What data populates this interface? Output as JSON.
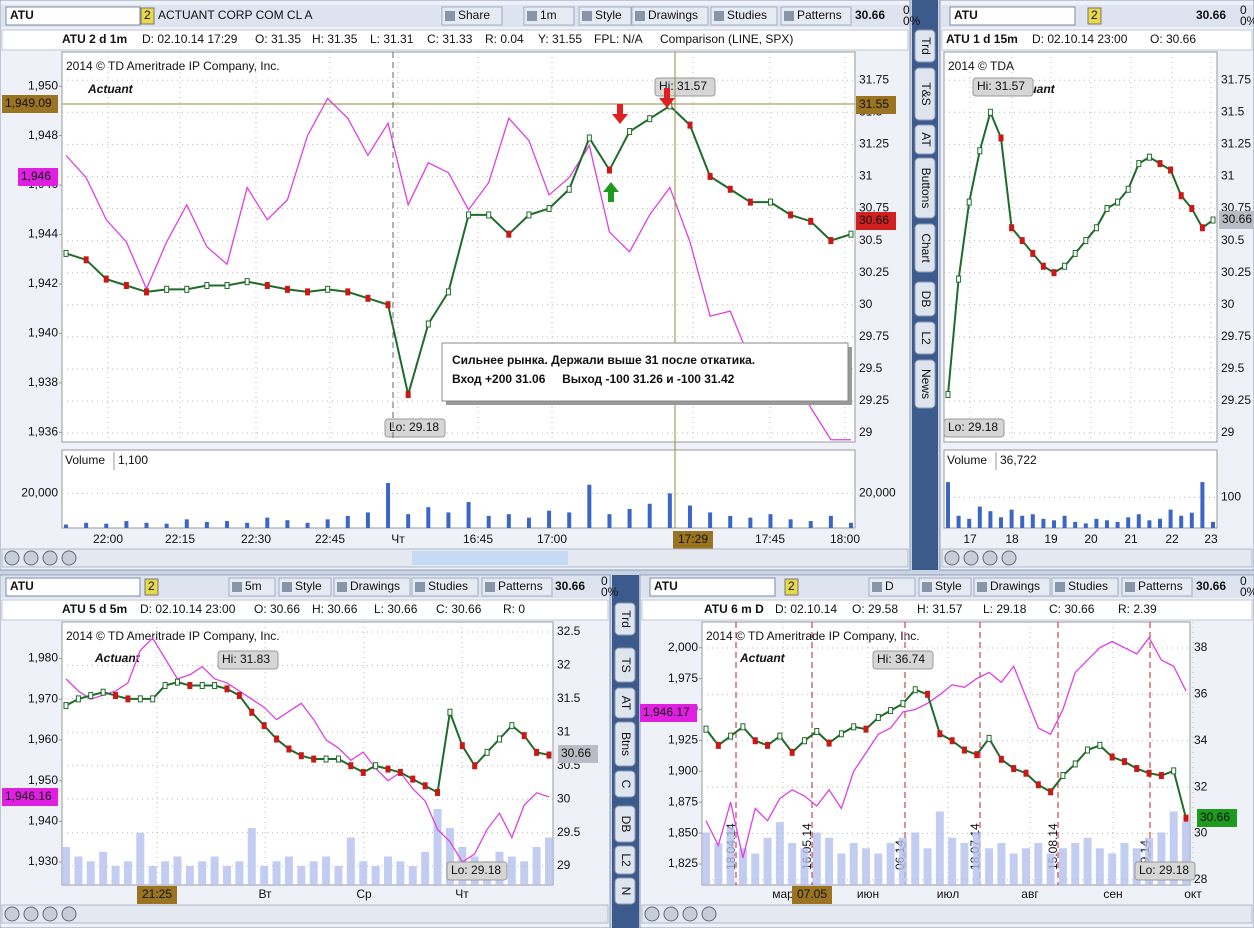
{
  "panels": [
    {
      "symbol": "ATU",
      "link": "2",
      "name": "ACTUANT CORP COM CL A",
      "tools": [
        "Share",
        "1m",
        "Style",
        "Drawings",
        "Studies",
        "Patterns"
      ],
      "last": "30.66",
      "change": "0",
      "change_pct": "0%",
      "info": [
        "ATU 2 d 1m",
        "D: 02.10.14 17:29",
        "O: 31.35",
        "H: 31.35",
        "L: 31.31",
        "C: 31.33",
        "R: 0.04",
        "Y: 31.55",
        "FPL: N/A"
      ],
      "comparison_label": "Comparison (LINE, SPX)",
      "copyright": "2014 © TD Ameritrade IP Company, Inc.",
      "logo": "Actuant",
      "hi": "Hi: 31.57",
      "lo": "Lo: 29.18",
      "price": {
        "ylim": [
          28.93,
          31.97
        ],
        "yticks": [
          31.75,
          31.5,
          31.25,
          31,
          30.75,
          30.5,
          30.25,
          30,
          29.75,
          29.5,
          29.25,
          29
        ],
        "values": [
          30.4,
          30.35,
          30.2,
          30.15,
          30.1,
          30.12,
          30.12,
          30.15,
          30.15,
          30.18,
          30.15,
          30.12,
          30.1,
          30.12,
          30.1,
          30.05,
          30.0,
          29.3,
          29.85,
          30.1,
          30.7,
          30.7,
          30.55,
          30.7,
          30.75,
          30.9,
          31.3,
          31.05,
          31.35,
          31.45,
          31.55,
          31.4,
          31.0,
          30.9,
          30.8,
          30.8,
          30.7,
          30.65,
          30.5,
          30.55
        ]
      },
      "comparison": {
        "ylim": [
          1935.61,
          1951.38
        ],
        "yticks": [
          {
            "value": 1950,
            "label": "1,950"
          },
          {
            "value": 1948,
            "label": "1,948"
          },
          {
            "value": 1946,
            "label": "1,946"
          },
          {
            "value": 1944,
            "label": "1,944"
          },
          {
            "value": 1942,
            "label": "1,942"
          },
          {
            "value": 1940,
            "label": "1,940"
          },
          {
            "value": 1938,
            "label": "1,938"
          },
          {
            "value": 1936,
            "label": "1,936"
          }
        ],
        "values": [
          1947.2,
          1946.3,
          1944.6,
          1943.7,
          1941.8,
          1943.7,
          1945.2,
          1943.5,
          1942.8,
          1945.9,
          1944.6,
          1945.4,
          1948.0,
          1949.5,
          1948.7,
          1947.2,
          1948.5,
          1945.2,
          1946.9,
          1946.5,
          1945.0,
          1946.1,
          1948.7,
          1947.8,
          1945.6,
          1946.3,
          1947.6,
          1944.1,
          1943.3,
          1944.8,
          1945.9,
          1943.7,
          1940.7,
          1940.9,
          1938.9,
          1938.7,
          1938.5,
          1937.0,
          1935.7,
          1935.7
        ]
      },
      "volume": {
        "label": "Volume",
        "current": "1,100",
        "ylim": [
          0,
          32350
        ],
        "yticks": [
          {
            "value": 20000,
            "label": "20,000"
          }
        ],
        "values": [
          2000,
          3000,
          2500,
          4000,
          3000,
          2500,
          5000,
          3500,
          4000,
          3000,
          6000,
          4500,
          3000,
          5000,
          7000,
          9000,
          26000,
          8000,
          12000,
          9000,
          15000,
          7000,
          8000,
          6000,
          10000,
          9000,
          25000,
          8000,
          11000,
          14000,
          20000,
          13000,
          9000,
          7000,
          6000,
          8000,
          5000,
          4000,
          7000,
          3000
        ]
      },
      "xticks": [
        "22:00",
        "22:15",
        "22:30",
        "22:45",
        "Чт",
        "16:45",
        "17:00",
        "17:29",
        "17:45",
        "18:00"
      ],
      "markers": [
        "1,949.09",
        "1,946",
        "31.55",
        "30.66"
      ]
    },
    {
      "symbol": "ATU",
      "link": "2",
      "last": "30.66",
      "change": "0",
      "change_pct": "0%",
      "info": [
        "ATU 1 d 15m",
        "D: 02.10.14 23:00",
        "O: 30.66"
      ],
      "copyright": "2014 © TDA",
      "logo": "Actuant",
      "hi": "Hi: 31.57",
      "lo": "Lo: 29.18",
      "price": {
        "ylim": [
          28.93,
          31.97
        ],
        "yticks": [
          31.75,
          31.5,
          31.25,
          31,
          30.75,
          30.5,
          30.25,
          30,
          29.75,
          29.5,
          29.25,
          29
        ],
        "values": [
          29.3,
          30.2,
          30.8,
          31.2,
          31.5,
          31.3,
          30.6,
          30.5,
          30.4,
          30.3,
          30.25,
          30.3,
          30.4,
          30.5,
          30.6,
          30.75,
          30.8,
          30.9,
          31.1,
          31.15,
          31.1,
          31.05,
          30.85,
          30.75,
          30.6,
          30.66
        ]
      },
      "volume": {
        "label": "Volume",
        "current": "36,722",
        "ylim": [
          0,
          183
        ],
        "yticks": [
          100
        ],
        "values": [
          150,
          40,
          30,
          70,
          55,
          35,
          60,
          40,
          45,
          30,
          25,
          40,
          20,
          15,
          30,
          25,
          20,
          35,
          45,
          25,
          30,
          60,
          40,
          50,
          150,
          20
        ]
      },
      "xticks": [
        "17",
        "18",
        "19",
        "20",
        "21",
        "22",
        "23"
      ],
      "markers": [
        "30.66"
      ]
    },
    {
      "symbol": "ATU",
      "link": "2",
      "last": "30.66",
      "change": "0",
      "change_pct": "0%",
      "tools": [
        "5m",
        "Style",
        "Drawings",
        "Studies",
        "Patterns"
      ],
      "info": [
        "ATU 5 d 5m",
        "D: 02.10.14 23:00",
        "O: 30.66",
        "H: 30.66",
        "L: 30.66",
        "C: 30.66",
        "R: 0"
      ],
      "copyright": "2014 © TD Ameritrade IP Company, Inc.",
      "logo": "Actuant",
      "hi": "Hi: 31.83",
      "lo": "Lo: 29.18",
      "price": {
        "ylim": [
          28.716,
          32.65
        ],
        "yticks": [
          32.5,
          32,
          31.5,
          31,
          30.5,
          30,
          29.5,
          29
        ],
        "values": [
          31.4,
          31.5,
          31.55,
          31.6,
          31.55,
          31.5,
          31.5,
          31.5,
          31.7,
          31.75,
          31.7,
          31.7,
          31.7,
          31.65,
          31.55,
          31.3,
          31.1,
          30.9,
          30.75,
          30.65,
          30.6,
          30.6,
          30.6,
          30.5,
          30.4,
          30.5,
          30.45,
          30.4,
          30.3,
          30.2,
          30.1,
          31.3,
          30.8,
          30.5,
          30.7,
          30.9,
          31.1,
          30.95,
          30.7,
          30.66
        ]
      },
      "comparison": {
        "ylim": [
          1924.35,
          1988.97
        ],
        "yticks": [
          {
            "value": 1980,
            "label": "1,980"
          },
          {
            "value": 1970,
            "label": "1,970"
          },
          {
            "value": 1960,
            "label": "1,960"
          },
          {
            "value": 1950,
            "label": "1,950"
          },
          {
            "value": 1940,
            "label": "1,940"
          },
          {
            "value": 1930,
            "label": "1,930"
          }
        ],
        "values": [
          1975,
          1972,
          1970,
          1971,
          1972,
          1974,
          1982,
          1985,
          1980,
          1975,
          1976,
          1978,
          1975,
          1974,
          1972,
          1970,
          1968,
          1965,
          1967,
          1969,
          1965,
          1960,
          1958,
          1955,
          1957,
          1953,
          1950,
          1952,
          1948,
          1945,
          1938,
          1935,
          1930,
          1932,
          1938,
          1942,
          1936,
          1944,
          1947,
          1946
        ]
      },
      "volume": {
        "ylim": [
          0,
          100
        ],
        "values": [
          40,
          30,
          25,
          35,
          20,
          25,
          55,
          20,
          25,
          30,
          20,
          25,
          30,
          20,
          25,
          60,
          20,
          25,
          30,
          20,
          25,
          30,
          20,
          50,
          25,
          20,
          30,
          25,
          20,
          35,
          80,
          60,
          40,
          30,
          25,
          35,
          30,
          25,
          40,
          50
        ]
      },
      "xticks": [
        "21:25",
        "Вт",
        "Ср",
        "Чт"
      ],
      "markers": [
        "30.66",
        "1,946.16"
      ]
    },
    {
      "symbol": "ATU",
      "link": "2",
      "last": "30.66",
      "change": "0",
      "change_pct": "0%",
      "tools": [
        "D",
        "Style",
        "Drawings",
        "Studies",
        "Patterns"
      ],
      "info": [
        "ATU 6 m D",
        "D: 02.10.14",
        "O: 29.58",
        "H: 31.57",
        "L: 29.18",
        "C: 30.66",
        "R: 2.39"
      ],
      "copyright": "2014 © TD Ameritrade IP Company, Inc.",
      "logo": "Actuant",
      "hi": "Hi: 36.74",
      "lo": "Lo: 29.18",
      "price": {
        "ylim": [
          27.78,
          39.12
        ],
        "yticks": [
          38,
          36,
          34,
          32,
          30,
          28
        ],
        "values": [
          34.5,
          33.8,
          34.2,
          34.6,
          34.0,
          33.8,
          34.2,
          33.5,
          34.0,
          34.4,
          33.9,
          34.3,
          34.6,
          34.5,
          35.0,
          35.3,
          35.6,
          36.2,
          36.0,
          34.3,
          34.0,
          33.6,
          33.4,
          34.1,
          33.2,
          32.8,
          32.6,
          32.1,
          31.8,
          32.5,
          33.0,
          33.6,
          33.8,
          33.3,
          33.1,
          32.8,
          32.6,
          32.5,
          32.7,
          30.66
        ]
      },
      "comparison": {
        "ylim": [
          1808,
          2020.8
        ],
        "yticks": [
          {
            "value": 2000,
            "label": "2,000"
          },
          {
            "value": 1975,
            "label": "1,975"
          },
          {
            "value": 1950,
            "label": "1,950"
          },
          {
            "value": 1925,
            "label": "1,925"
          },
          {
            "value": 1900,
            "label": "1,900"
          },
          {
            "value": 1875,
            "label": "1,875"
          },
          {
            "value": 1850,
            "label": "1,850"
          },
          {
            "value": 1825,
            "label": "1,825"
          }
        ],
        "values": [
          1860,
          1840,
          1875,
          1830,
          1870,
          1860,
          1878,
          1885,
          1880,
          1872,
          1885,
          1870,
          1900,
          1915,
          1930,
          1935,
          1948,
          1950,
          1955,
          1962,
          1970,
          1968,
          1975,
          1980,
          1972,
          1985,
          1960,
          1935,
          1930,
          1950,
          1980,
          1990,
          2000,
          2005,
          2000,
          1995,
          2008,
          1990,
          1985,
          1965
        ]
      },
      "volume": {
        "ylim": [
          0,
          100
        ],
        "values": [
          50,
          40,
          55,
          35,
          30,
          45,
          60,
          40,
          35,
          50,
          45,
          30,
          40,
          35,
          30,
          40,
          45,
          50,
          35,
          70,
          45,
          40,
          50,
          35,
          40,
          30,
          35,
          40,
          30,
          35,
          40,
          45,
          35,
          30,
          40,
          35,
          45,
          50,
          70,
          60
        ]
      },
      "xticks": [
        "мар",
        "07.05",
        "июн",
        "июл",
        "авг",
        "сен",
        "окт"
      ],
      "events": [
        "18.04.14",
        "16.05.14",
        "06.14",
        "18.07.14",
        "15.08.14",
        "09.14"
      ],
      "markers": [
        "1,946.17",
        "30.66"
      ]
    }
  ],
  "note": [
    "Сильнее рынка. Держали выше 31 после откатика.",
    "Вход +200 31.06     Выход -100 31.26 и -100 31.42"
  ],
  "side_tabs": {
    "top": [
      "Trd",
      "T&S",
      "AT",
      "Buttons",
      "Chart",
      "DB",
      "L2",
      "News"
    ],
    "bottom": [
      "Trd",
      "TS",
      "AT",
      "Btns",
      "C",
      "DB",
      "L2",
      "N"
    ]
  }
}
